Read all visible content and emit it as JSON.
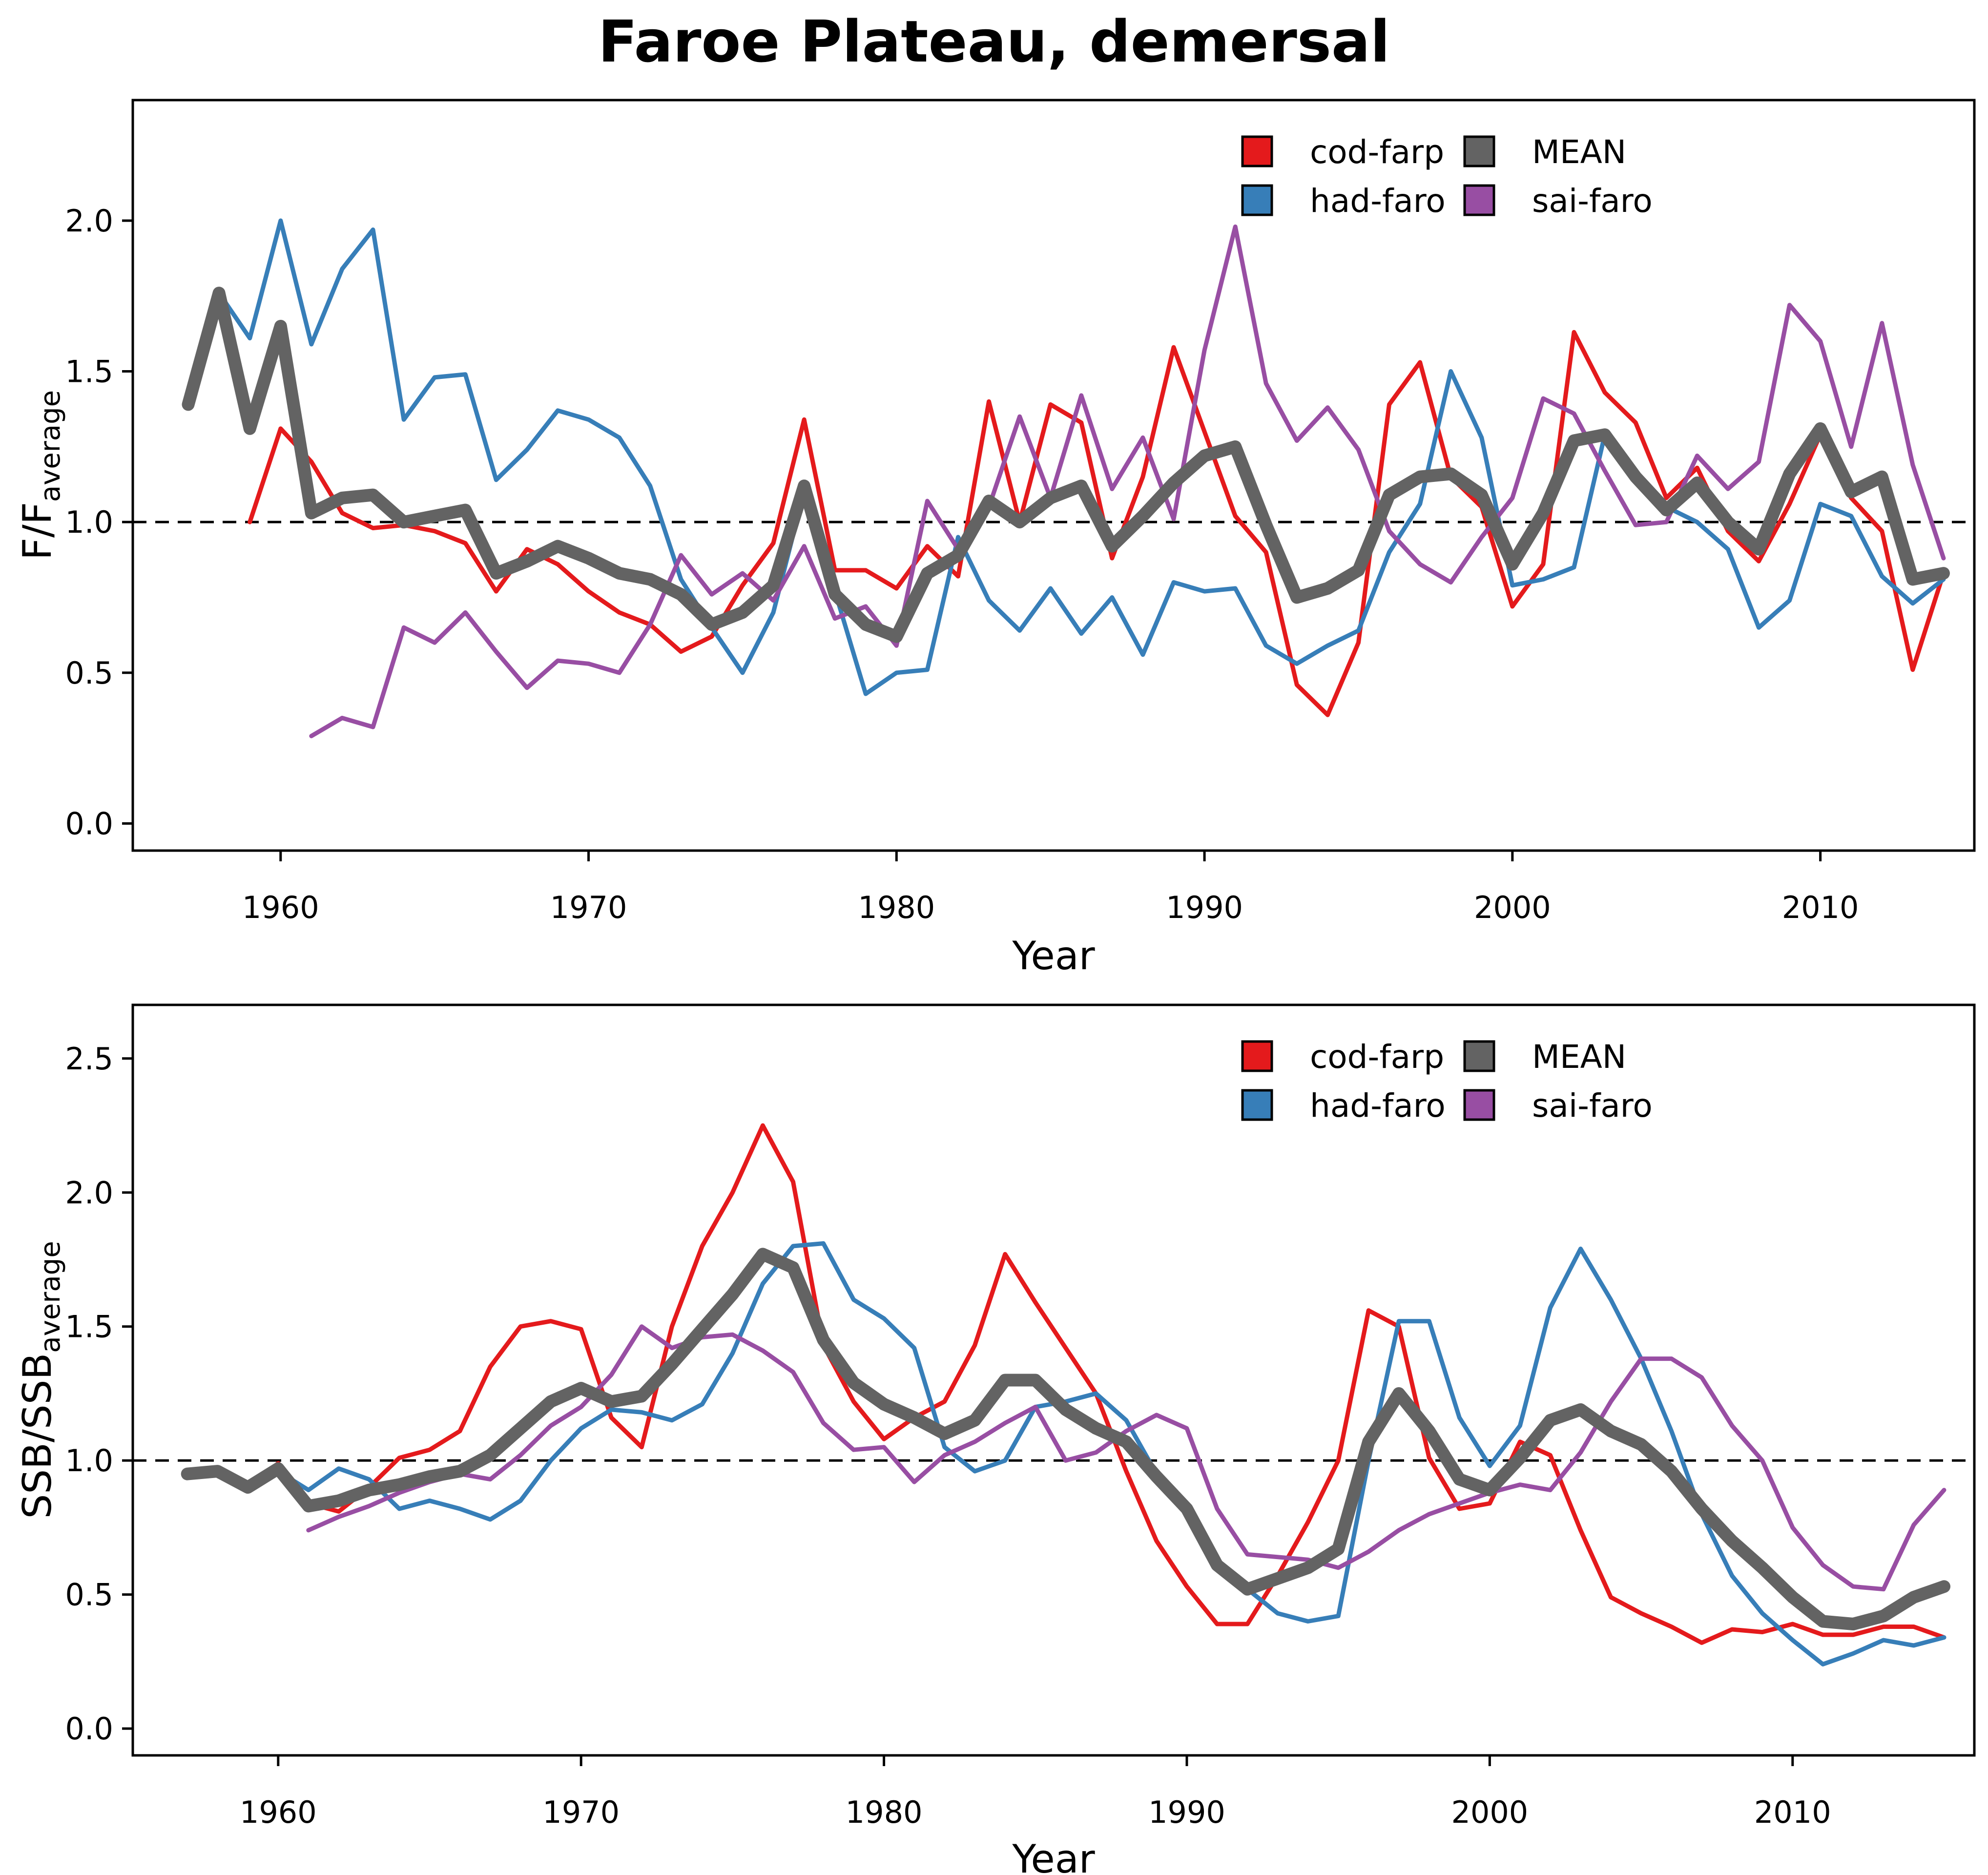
{
  "title": "Faroe Plateau, demersal",
  "colors": {
    "cod-farp": "#e41a1c",
    "had-faro": "#377eb8",
    "sai-faro": "#984ea3",
    "MEAN": "#636363"
  },
  "chart_data": [
    {
      "type": "line",
      "xlabel": "Year",
      "ylabel_main": "F/F",
      "ylabel_sub": "average",
      "xlim": [
        1955.2,
        2015.0
      ],
      "ylim": [
        -0.09,
        2.4
      ],
      "xticks": [
        1960,
        1970,
        1980,
        1990,
        2000,
        2010
      ],
      "yticks": [
        "0.0",
        "0.5",
        "1.0",
        "1.5",
        "2.0"
      ],
      "reference_line": 1.0,
      "legend": {
        "placement": "top-right",
        "entries": [
          "cod-farp",
          "had-faro",
          "MEAN",
          "sai-faro"
        ]
      },
      "series": [
        {
          "name": "cod-farp",
          "color": "#e41a1c",
          "x": [
            1959,
            1960,
            1961,
            1962,
            1963,
            1964,
            1965,
            1966,
            1967,
            1968,
            1969,
            1970,
            1971,
            1972,
            1973,
            1974,
            1975,
            1976,
            1977,
            1978,
            1979,
            1980,
            1981,
            1982,
            1983,
            1984,
            1985,
            1986,
            1987,
            1988,
            1989,
            1990,
            1991,
            1992,
            1993,
            1994,
            1995,
            1996,
            1997,
            1998,
            1999,
            2000,
            2001,
            2002,
            2003,
            2004,
            2005,
            2006,
            2007,
            2008,
            2009,
            2010,
            2011,
            2012,
            2013,
            2014
          ],
          "values": [
            1.0,
            1.31,
            1.2,
            1.03,
            0.98,
            0.99,
            0.97,
            0.93,
            0.77,
            0.91,
            0.86,
            0.77,
            0.7,
            0.66,
            0.57,
            0.62,
            0.79,
            0.93,
            1.34,
            0.84,
            0.84,
            0.78,
            0.92,
            0.82,
            1.4,
            1.0,
            1.39,
            1.33,
            0.88,
            1.15,
            1.58,
            1.3,
            1.02,
            0.9,
            0.46,
            0.36,
            0.6,
            1.39,
            1.53,
            1.15,
            1.05,
            0.72,
            0.86,
            1.63,
            1.43,
            1.33,
            1.08,
            1.18,
            0.97,
            0.87,
            1.06,
            1.29,
            1.08,
            0.97,
            0.51,
            0.83
          ]
        },
        {
          "name": "had-faro",
          "color": "#377eb8",
          "x": [
            1957,
            1958,
            1959,
            1960,
            1961,
            1962,
            1963,
            1964,
            1965,
            1966,
            1967,
            1968,
            1969,
            1970,
            1971,
            1972,
            1973,
            1974,
            1975,
            1976,
            1977,
            1978,
            1979,
            1980,
            1981,
            1982,
            1983,
            1984,
            1985,
            1986,
            1987,
            1988,
            1989,
            1990,
            1991,
            1992,
            1993,
            1994,
            1995,
            1996,
            1997,
            1998,
            1999,
            2000,
            2001,
            2002,
            2003,
            2004,
            2005,
            2006,
            2007,
            2008,
            2009,
            2010,
            2011,
            2012,
            2013,
            2014
          ],
          "values": [
            1.4,
            1.76,
            1.61,
            2.0,
            1.59,
            1.84,
            1.97,
            1.34,
            1.48,
            1.49,
            1.14,
            1.24,
            1.37,
            1.34,
            1.28,
            1.12,
            0.81,
            0.65,
            0.5,
            0.7,
            1.1,
            0.77,
            0.43,
            0.5,
            0.51,
            0.95,
            0.74,
            0.64,
            0.78,
            0.63,
            0.75,
            0.56,
            0.8,
            0.77,
            0.78,
            0.59,
            0.53,
            0.59,
            0.64,
            0.9,
            1.06,
            1.5,
            1.28,
            0.79,
            0.81,
            0.85,
            1.29,
            1.14,
            1.05,
            1.0,
            0.91,
            0.65,
            0.74,
            1.06,
            1.02,
            0.82,
            0.73,
            0.81
          ]
        },
        {
          "name": "sai-faro",
          "color": "#984ea3",
          "x": [
            1961,
            1962,
            1963,
            1964,
            1965,
            1966,
            1967,
            1968,
            1969,
            1970,
            1971,
            1972,
            1973,
            1974,
            1975,
            1976,
            1977,
            1978,
            1979,
            1980,
            1981,
            1982,
            1983,
            1984,
            1985,
            1986,
            1987,
            1988,
            1989,
            1990,
            1991,
            1992,
            1993,
            1994,
            1995,
            1996,
            1997,
            1998,
            1999,
            2000,
            2001,
            2002,
            2003,
            2004,
            2005,
            2006,
            2007,
            2008,
            2009,
            2010,
            2011,
            2012,
            2013,
            2014
          ],
          "values": [
            0.29,
            0.35,
            0.32,
            0.65,
            0.6,
            0.7,
            0.57,
            0.45,
            0.54,
            0.53,
            0.5,
            0.66,
            0.89,
            0.76,
            0.83,
            0.74,
            0.92,
            0.68,
            0.72,
            0.59,
            1.07,
            0.91,
            1.05,
            1.35,
            1.08,
            1.42,
            1.11,
            1.28,
            1.01,
            1.57,
            1.98,
            1.46,
            1.27,
            1.38,
            1.24,
            0.97,
            0.86,
            0.8,
            0.95,
            1.08,
            1.41,
            1.36,
            1.17,
            0.99,
            1.0,
            1.22,
            1.11,
            1.2,
            1.72,
            1.6,
            1.25,
            1.66,
            1.19,
            0.88
          ]
        },
        {
          "name": "MEAN",
          "color": "#636363",
          "thick": true,
          "x": [
            1957,
            1958,
            1959,
            1960,
            1961,
            1962,
            1963,
            1964,
            1965,
            1966,
            1967,
            1968,
            1969,
            1970,
            1971,
            1972,
            1973,
            1974,
            1975,
            1976,
            1977,
            1978,
            1979,
            1980,
            1981,
            1982,
            1983,
            1984,
            1985,
            1986,
            1987,
            1988,
            1989,
            1990,
            1991,
            1992,
            1993,
            1994,
            1995,
            1996,
            1997,
            1998,
            1999,
            2000,
            2001,
            2002,
            2003,
            2004,
            2005,
            2006,
            2007,
            2008,
            2009,
            2010,
            2011,
            2012,
            2013,
            2014
          ],
          "values": [
            1.39,
            1.76,
            1.31,
            1.65,
            1.03,
            1.08,
            1.09,
            1.0,
            1.02,
            1.04,
            0.83,
            0.87,
            0.92,
            0.88,
            0.83,
            0.81,
            0.76,
            0.66,
            0.7,
            0.79,
            1.12,
            0.76,
            0.66,
            0.62,
            0.83,
            0.89,
            1.07,
            1.0,
            1.08,
            1.12,
            0.92,
            1.02,
            1.13,
            1.22,
            1.25,
            0.99,
            0.75,
            0.78,
            0.84,
            1.09,
            1.15,
            1.16,
            1.09,
            0.86,
            1.03,
            1.27,
            1.29,
            1.15,
            1.04,
            1.13,
            1.0,
            0.91,
            1.16,
            1.31,
            1.1,
            1.15,
            0.81,
            0.83
          ]
        }
      ]
    },
    {
      "type": "line",
      "xlabel": "Year",
      "ylabel_main": "SSB/SSB",
      "ylabel_sub": "average",
      "xlim": [
        1955.2,
        2016.0
      ],
      "ylim": [
        -0.1,
        2.7
      ],
      "xticks": [
        1960,
        1970,
        1980,
        1990,
        2000,
        2010
      ],
      "yticks": [
        "0.0",
        "0.5",
        "1.0",
        "1.5",
        "2.0",
        "2.5"
      ],
      "reference_line": 1.0,
      "legend": {
        "placement": "top-right",
        "entries": [
          "cod-farp",
          "had-faro",
          "MEAN",
          "sai-faro"
        ]
      },
      "series": [
        {
          "name": "cod-farp",
          "color": "#e41a1c",
          "x": [
            1957,
            1958,
            1959,
            1960,
            1961,
            1962,
            1963,
            1964,
            1965,
            1966,
            1967,
            1968,
            1969,
            1970,
            1971,
            1972,
            1973,
            1974,
            1975,
            1976,
            1977,
            1978,
            1979,
            1980,
            1981,
            1982,
            1983,
            1984,
            1985,
            1986,
            1987,
            1988,
            1989,
            1990,
            1991,
            1992,
            1993,
            1994,
            1995,
            1996,
            1997,
            1998,
            1999,
            2000,
            2001,
            2002,
            2003,
            2004,
            2005,
            2006,
            2007,
            2008,
            2009,
            2010,
            2011,
            2012,
            2013,
            2014,
            2015
          ],
          "values": [
            0.95,
            0.96,
            0.89,
            0.99,
            0.84,
            0.81,
            0.9,
            1.01,
            1.04,
            1.11,
            1.35,
            1.5,
            1.52,
            1.49,
            1.16,
            1.05,
            1.5,
            1.8,
            2.0,
            2.25,
            2.04,
            1.43,
            1.22,
            1.08,
            1.16,
            1.22,
            1.43,
            1.77,
            1.59,
            1.42,
            1.25,
            0.96,
            0.7,
            0.53,
            0.39,
            0.39,
            0.57,
            0.77,
            1.0,
            1.56,
            1.5,
            1.01,
            0.82,
            0.84,
            1.07,
            1.02,
            0.74,
            0.49,
            0.43,
            0.38,
            0.32,
            0.37,
            0.36,
            0.39,
            0.35,
            0.35,
            0.38,
            0.38,
            0.34
          ]
        },
        {
          "name": "had-faro",
          "color": "#377eb8",
          "x": [
            1957,
            1958,
            1959,
            1960,
            1961,
            1962,
            1963,
            1964,
            1965,
            1966,
            1967,
            1968,
            1969,
            1970,
            1971,
            1972,
            1973,
            1974,
            1975,
            1976,
            1977,
            1978,
            1979,
            1980,
            1981,
            1982,
            1983,
            1984,
            1985,
            1986,
            1987,
            1988,
            1989,
            1990,
            1991,
            1992,
            1993,
            1994,
            1995,
            1996,
            1997,
            1998,
            1999,
            2000,
            2001,
            2002,
            2003,
            2004,
            2005,
            2006,
            2007,
            2008,
            2009,
            2010,
            2011,
            2012,
            2013,
            2014,
            2015
          ],
          "values": [
            0.95,
            0.96,
            0.91,
            0.96,
            0.89,
            0.97,
            0.93,
            0.82,
            0.85,
            0.82,
            0.78,
            0.85,
            1.0,
            1.12,
            1.19,
            1.18,
            1.15,
            1.21,
            1.4,
            1.66,
            1.8,
            1.81,
            1.6,
            1.53,
            1.42,
            1.05,
            0.96,
            1.0,
            1.2,
            1.22,
            1.25,
            1.15,
            0.95,
            0.8,
            0.62,
            0.52,
            0.43,
            0.4,
            0.42,
            1.0,
            1.52,
            1.52,
            1.16,
            0.98,
            1.13,
            1.57,
            1.79,
            1.6,
            1.38,
            1.11,
            0.8,
            0.57,
            0.43,
            0.33,
            0.24,
            0.28,
            0.33,
            0.31,
            0.34
          ]
        },
        {
          "name": "sai-faro",
          "color": "#984ea3",
          "x": [
            1961,
            1962,
            1963,
            1964,
            1965,
            1966,
            1967,
            1968,
            1969,
            1970,
            1971,
            1972,
            1973,
            1974,
            1975,
            1976,
            1977,
            1978,
            1979,
            1980,
            1981,
            1982,
            1983,
            1984,
            1985,
            1986,
            1987,
            1988,
            1989,
            1990,
            1991,
            1992,
            1993,
            1994,
            1995,
            1996,
            1997,
            1998,
            1999,
            2000,
            2001,
            2002,
            2003,
            2004,
            2005,
            2006,
            2007,
            2008,
            2009,
            2010,
            2011,
            2012,
            2013,
            2014,
            2015
          ],
          "values": [
            0.74,
            0.79,
            0.83,
            0.88,
            0.92,
            0.95,
            0.93,
            1.02,
            1.13,
            1.2,
            1.32,
            1.5,
            1.42,
            1.46,
            1.47,
            1.41,
            1.33,
            1.14,
            1.04,
            1.05,
            0.92,
            1.02,
            1.07,
            1.14,
            1.2,
            1.0,
            1.03,
            1.11,
            1.17,
            1.12,
            0.82,
            0.65,
            0.64,
            0.63,
            0.6,
            0.66,
            0.74,
            0.8,
            0.84,
            0.88,
            0.91,
            0.89,
            1.03,
            1.22,
            1.38,
            1.38,
            1.31,
            1.13,
            1.0,
            0.75,
            0.61,
            0.53,
            0.52,
            0.76,
            0.89
          ]
        },
        {
          "name": "MEAN",
          "color": "#636363",
          "thick": true,
          "x": [
            1957,
            1958,
            1959,
            1960,
            1961,
            1962,
            1963,
            1964,
            1965,
            1966,
            1967,
            1968,
            1969,
            1970,
            1971,
            1972,
            1973,
            1974,
            1975,
            1976,
            1977,
            1978,
            1979,
            1980,
            1981,
            1982,
            1983,
            1984,
            1985,
            1986,
            1987,
            1988,
            1989,
            1990,
            1991,
            1992,
            1993,
            1994,
            1995,
            1996,
            1997,
            1998,
            1999,
            2000,
            2001,
            2002,
            2003,
            2004,
            2005,
            2006,
            2007,
            2008,
            2009,
            2010,
            2011,
            2012,
            2013,
            2014,
            2015
          ],
          "values": [
            0.95,
            0.96,
            0.9,
            0.97,
            0.83,
            0.85,
            0.89,
            0.91,
            0.94,
            0.96,
            1.02,
            1.12,
            1.22,
            1.27,
            1.22,
            1.24,
            1.36,
            1.49,
            1.62,
            1.77,
            1.72,
            1.45,
            1.29,
            1.21,
            1.16,
            1.1,
            1.15,
            1.3,
            1.3,
            1.19,
            1.12,
            1.07,
            0.94,
            0.82,
            0.61,
            0.52,
            0.56,
            0.6,
            0.67,
            1.07,
            1.25,
            1.11,
            0.93,
            0.89,
            1.01,
            1.15,
            1.19,
            1.11,
            1.06,
            0.96,
            0.82,
            0.7,
            0.6,
            0.49,
            0.4,
            0.39,
            0.42,
            0.49,
            0.53
          ]
        }
      ]
    }
  ]
}
